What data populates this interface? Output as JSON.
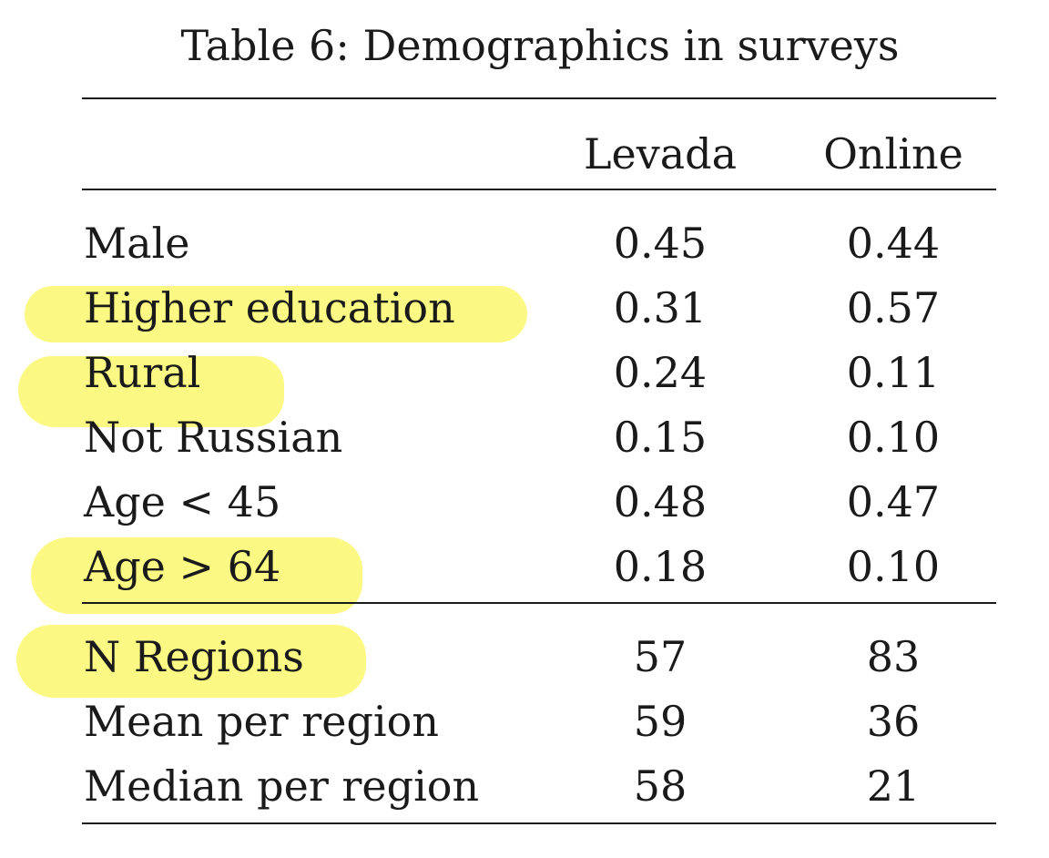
{
  "caption": "Table 6: Demographics in surveys",
  "columns": [
    "Levada",
    "Online"
  ],
  "rows": [
    {
      "label": "Male",
      "levada": "0.45",
      "online": "0.44",
      "highlighted": false
    },
    {
      "label": "Higher education",
      "levada": "0.31",
      "online": "0.57",
      "highlighted": true
    },
    {
      "label": "Rural",
      "levada": "0.24",
      "online": "0.11",
      "highlighted": true
    },
    {
      "label": "Not Russian",
      "levada": "0.15",
      "online": "0.10",
      "highlighted": false
    },
    {
      "label": "Age < 45",
      "levada": "0.48",
      "online": "0.47",
      "highlighted": false
    },
    {
      "label": "Age > 64",
      "levada": "0.18",
      "online": "0.10",
      "highlighted": true
    }
  ],
  "summary_rows": [
    {
      "label": "N Regions",
      "levada": "57",
      "online": "83",
      "highlighted": true
    },
    {
      "label": "Mean per region",
      "levada": "59",
      "online": "36",
      "highlighted": false
    },
    {
      "label": "Median per region",
      "levada": "58",
      "online": "21",
      "highlighted": false
    }
  ],
  "highlight_color": "#fbf776"
}
